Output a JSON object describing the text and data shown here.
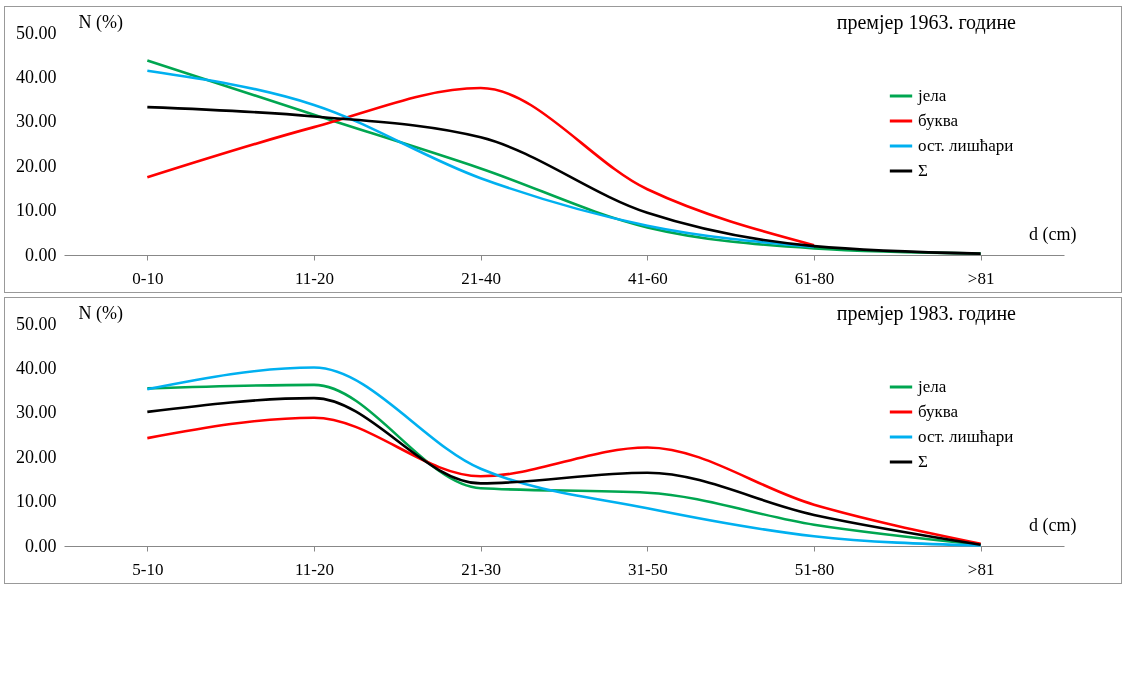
{
  "chart_data": [
    {
      "type": "line",
      "title": "премјер 1963. године",
      "ylabel": "N (%)",
      "xlabel": "d (cm)",
      "categories": [
        "0-10",
        "11-20",
        "21-40",
        "41-60",
        "61-80",
        ">81"
      ],
      "ylim": [
        0,
        50
      ],
      "yticks": [
        {
          "value": 0,
          "label": "0.00"
        },
        {
          "value": 10,
          "label": "10.00"
        },
        {
          "value": 20,
          "label": "20.00"
        },
        {
          "value": 30,
          "label": "30.00"
        },
        {
          "value": 40,
          "label": "40.00"
        },
        {
          "value": 50,
          "label": "50.00"
        }
      ],
      "grid": false,
      "legend": "top right",
      "marker": "none",
      "line_style": "solid",
      "series": [
        {
          "name": "јела",
          "color": "#00a650",
          "values": [
            43.8,
            31.6,
            19.5,
            6.2,
            1.5,
            0.3
          ]
        },
        {
          "name": "буква",
          "color": "#ff0000",
          "values": [
            17.5,
            28.8,
            37.6,
            14.8,
            2.2,
            null
          ]
        },
        {
          "name": "ост. лишћари",
          "color": "#00b0f0",
          "values": [
            41.5,
            33.8,
            17.3,
            6.6,
            1.8,
            null
          ]
        },
        {
          "name": "Σ",
          "color": "#000000",
          "values": [
            33.3,
            31.2,
            26.5,
            9.5,
            2.0,
            0.3
          ]
        }
      ]
    },
    {
      "type": "line",
      "title": "премјер 1983. године",
      "ylabel": "N (%)",
      "xlabel": "d (cm)",
      "categories": [
        "5-10",
        "11-20",
        "21-30",
        "31-50",
        "51-80",
        ">81"
      ],
      "ylim": [
        0,
        50
      ],
      "yticks": [
        {
          "value": 0,
          "label": "0.00"
        },
        {
          "value": 10,
          "label": "10.00"
        },
        {
          "value": 20,
          "label": "20.00"
        },
        {
          "value": 30,
          "label": "30.00"
        },
        {
          "value": 40,
          "label": "40.00"
        },
        {
          "value": 50,
          "label": "50.00"
        }
      ],
      "grid": false,
      "legend": "top right",
      "marker": "none",
      "line_style": "solid",
      "series": [
        {
          "name": "јела",
          "color": "#00a650",
          "values": [
            35.5,
            36.3,
            13.0,
            12.0,
            4.8,
            0.3
          ]
        },
        {
          "name": "буква",
          "color": "#ff0000",
          "values": [
            24.3,
            28.9,
            15.7,
            22.2,
            9.3,
            0.5
          ]
        },
        {
          "name": "ост. лишћари",
          "color": "#00b0f0",
          "values": [
            35.3,
            40.2,
            17.4,
            8.5,
            2.2,
            0.1
          ]
        },
        {
          "name": "Σ",
          "color": "#000000",
          "values": [
            30.2,
            33.3,
            14.1,
            16.5,
            7.0,
            0.3
          ]
        }
      ]
    }
  ]
}
